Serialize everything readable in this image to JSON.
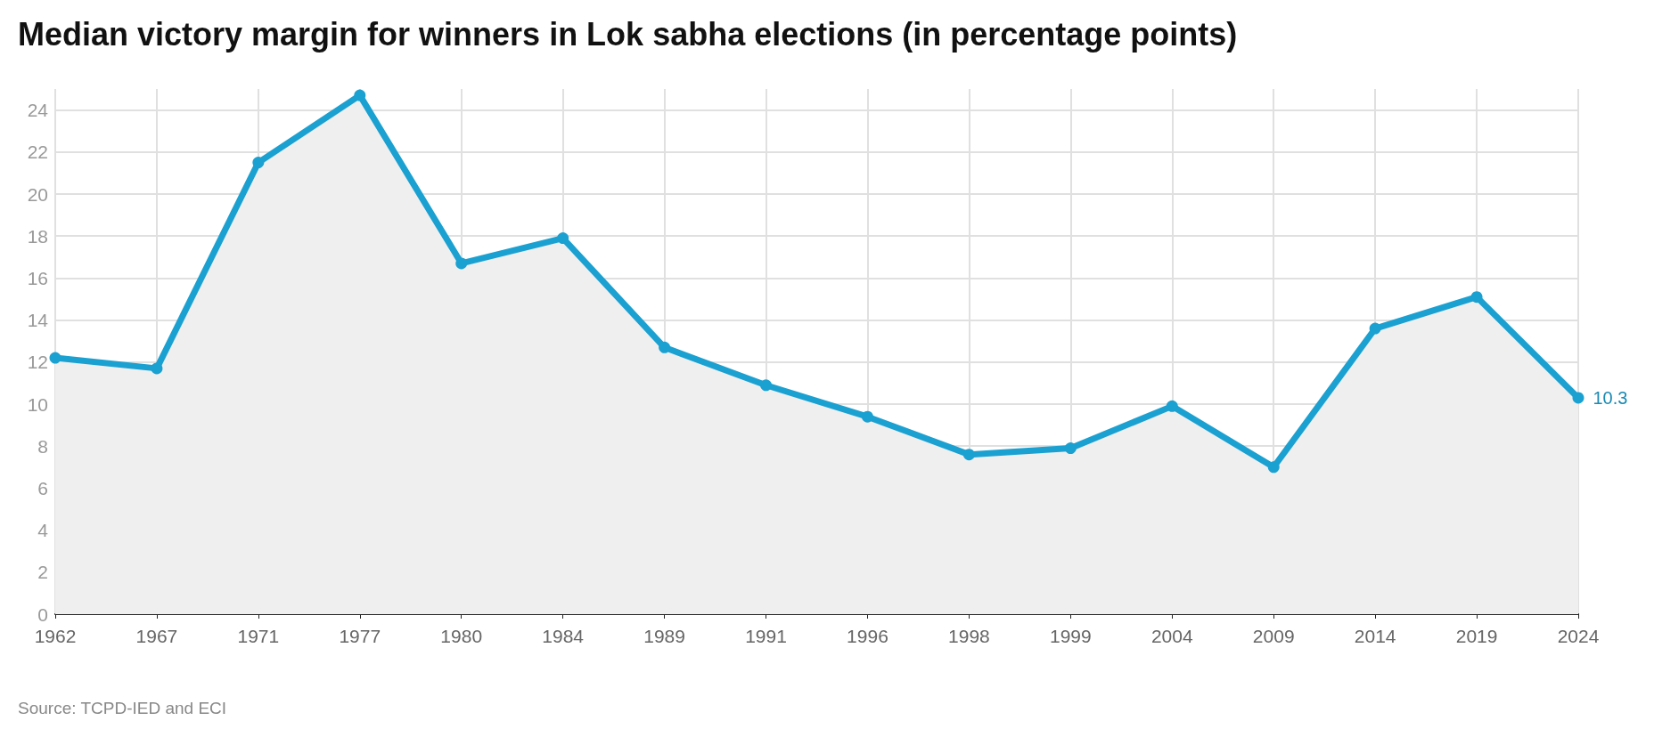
{
  "chart_data": {
    "type": "area",
    "title": "Median victory margin for winners in Lok sabha elections (in percentage points)",
    "categories": [
      "1962",
      "1967",
      "1971",
      "1977",
      "1980",
      "1984",
      "1989",
      "1991",
      "1996",
      "1998",
      "1999",
      "2004",
      "2009",
      "2014",
      "2019",
      "2024"
    ],
    "series": [
      {
        "color": "#1ba1d1",
        "values": [
          12.2,
          11.7,
          21.5,
          24.7,
          16.7,
          17.9,
          12.7,
          10.9,
          9.4,
          7.6,
          7.9,
          9.9,
          7.0,
          13.6,
          15.1,
          10.3
        ],
        "value_labels": [
          null,
          null,
          null,
          null,
          null,
          null,
          null,
          null,
          null,
          null,
          null,
          null,
          null,
          null,
          null,
          "10.3"
        ]
      }
    ],
    "ylim": [
      0,
      25
    ],
    "yticks": [
      0,
      2,
      4,
      6,
      8,
      10,
      12,
      14,
      16,
      18,
      20,
      22,
      24
    ],
    "grid": true,
    "marker": "circle",
    "line_style": "solid",
    "annotations": [
      "Source: TCPD-IED and ECI"
    ]
  }
}
